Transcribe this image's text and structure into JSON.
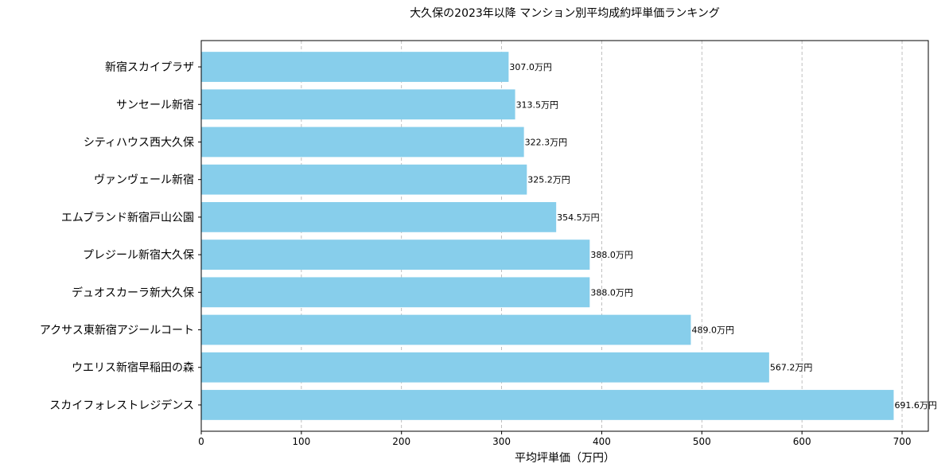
{
  "chart_data": {
    "type": "bar",
    "orientation": "horizontal",
    "title": "大久保の2023年以降 マンション別平均成約坪単価ランキング",
    "xlabel": "平均坪単価（万円）",
    "ylabel": "",
    "categories": [
      "新宿スカイプラザ",
      "サンセール新宿",
      "シティハウス西大久保",
      "ヴァンヴェール新宿",
      "エムブランド新宿戸山公園",
      "プレジール新宿大久保",
      "デュオスカーラ新大久保",
      "アクサス東新宿アジールコート",
      "ウエリス新宿早稲田の森",
      "スカイフォレストレジデンス"
    ],
    "values": [
      307.0,
      313.5,
      322.3,
      325.2,
      354.5,
      388.0,
      388.0,
      489.0,
      567.2,
      691.6
    ],
    "data_labels": [
      "307.0万円",
      "313.5万円",
      "322.3万円",
      "325.2万円",
      "354.5万円",
      "388.0万円",
      "388.0万円",
      "489.0万円",
      "567.2万円",
      "691.6万円"
    ],
    "xlim": [
      0,
      726.2
    ],
    "xticks": [
      0,
      100,
      200,
      300,
      400,
      500,
      600,
      700
    ],
    "grid": "x-dashed",
    "bar_color": "#87CEEB"
  }
}
